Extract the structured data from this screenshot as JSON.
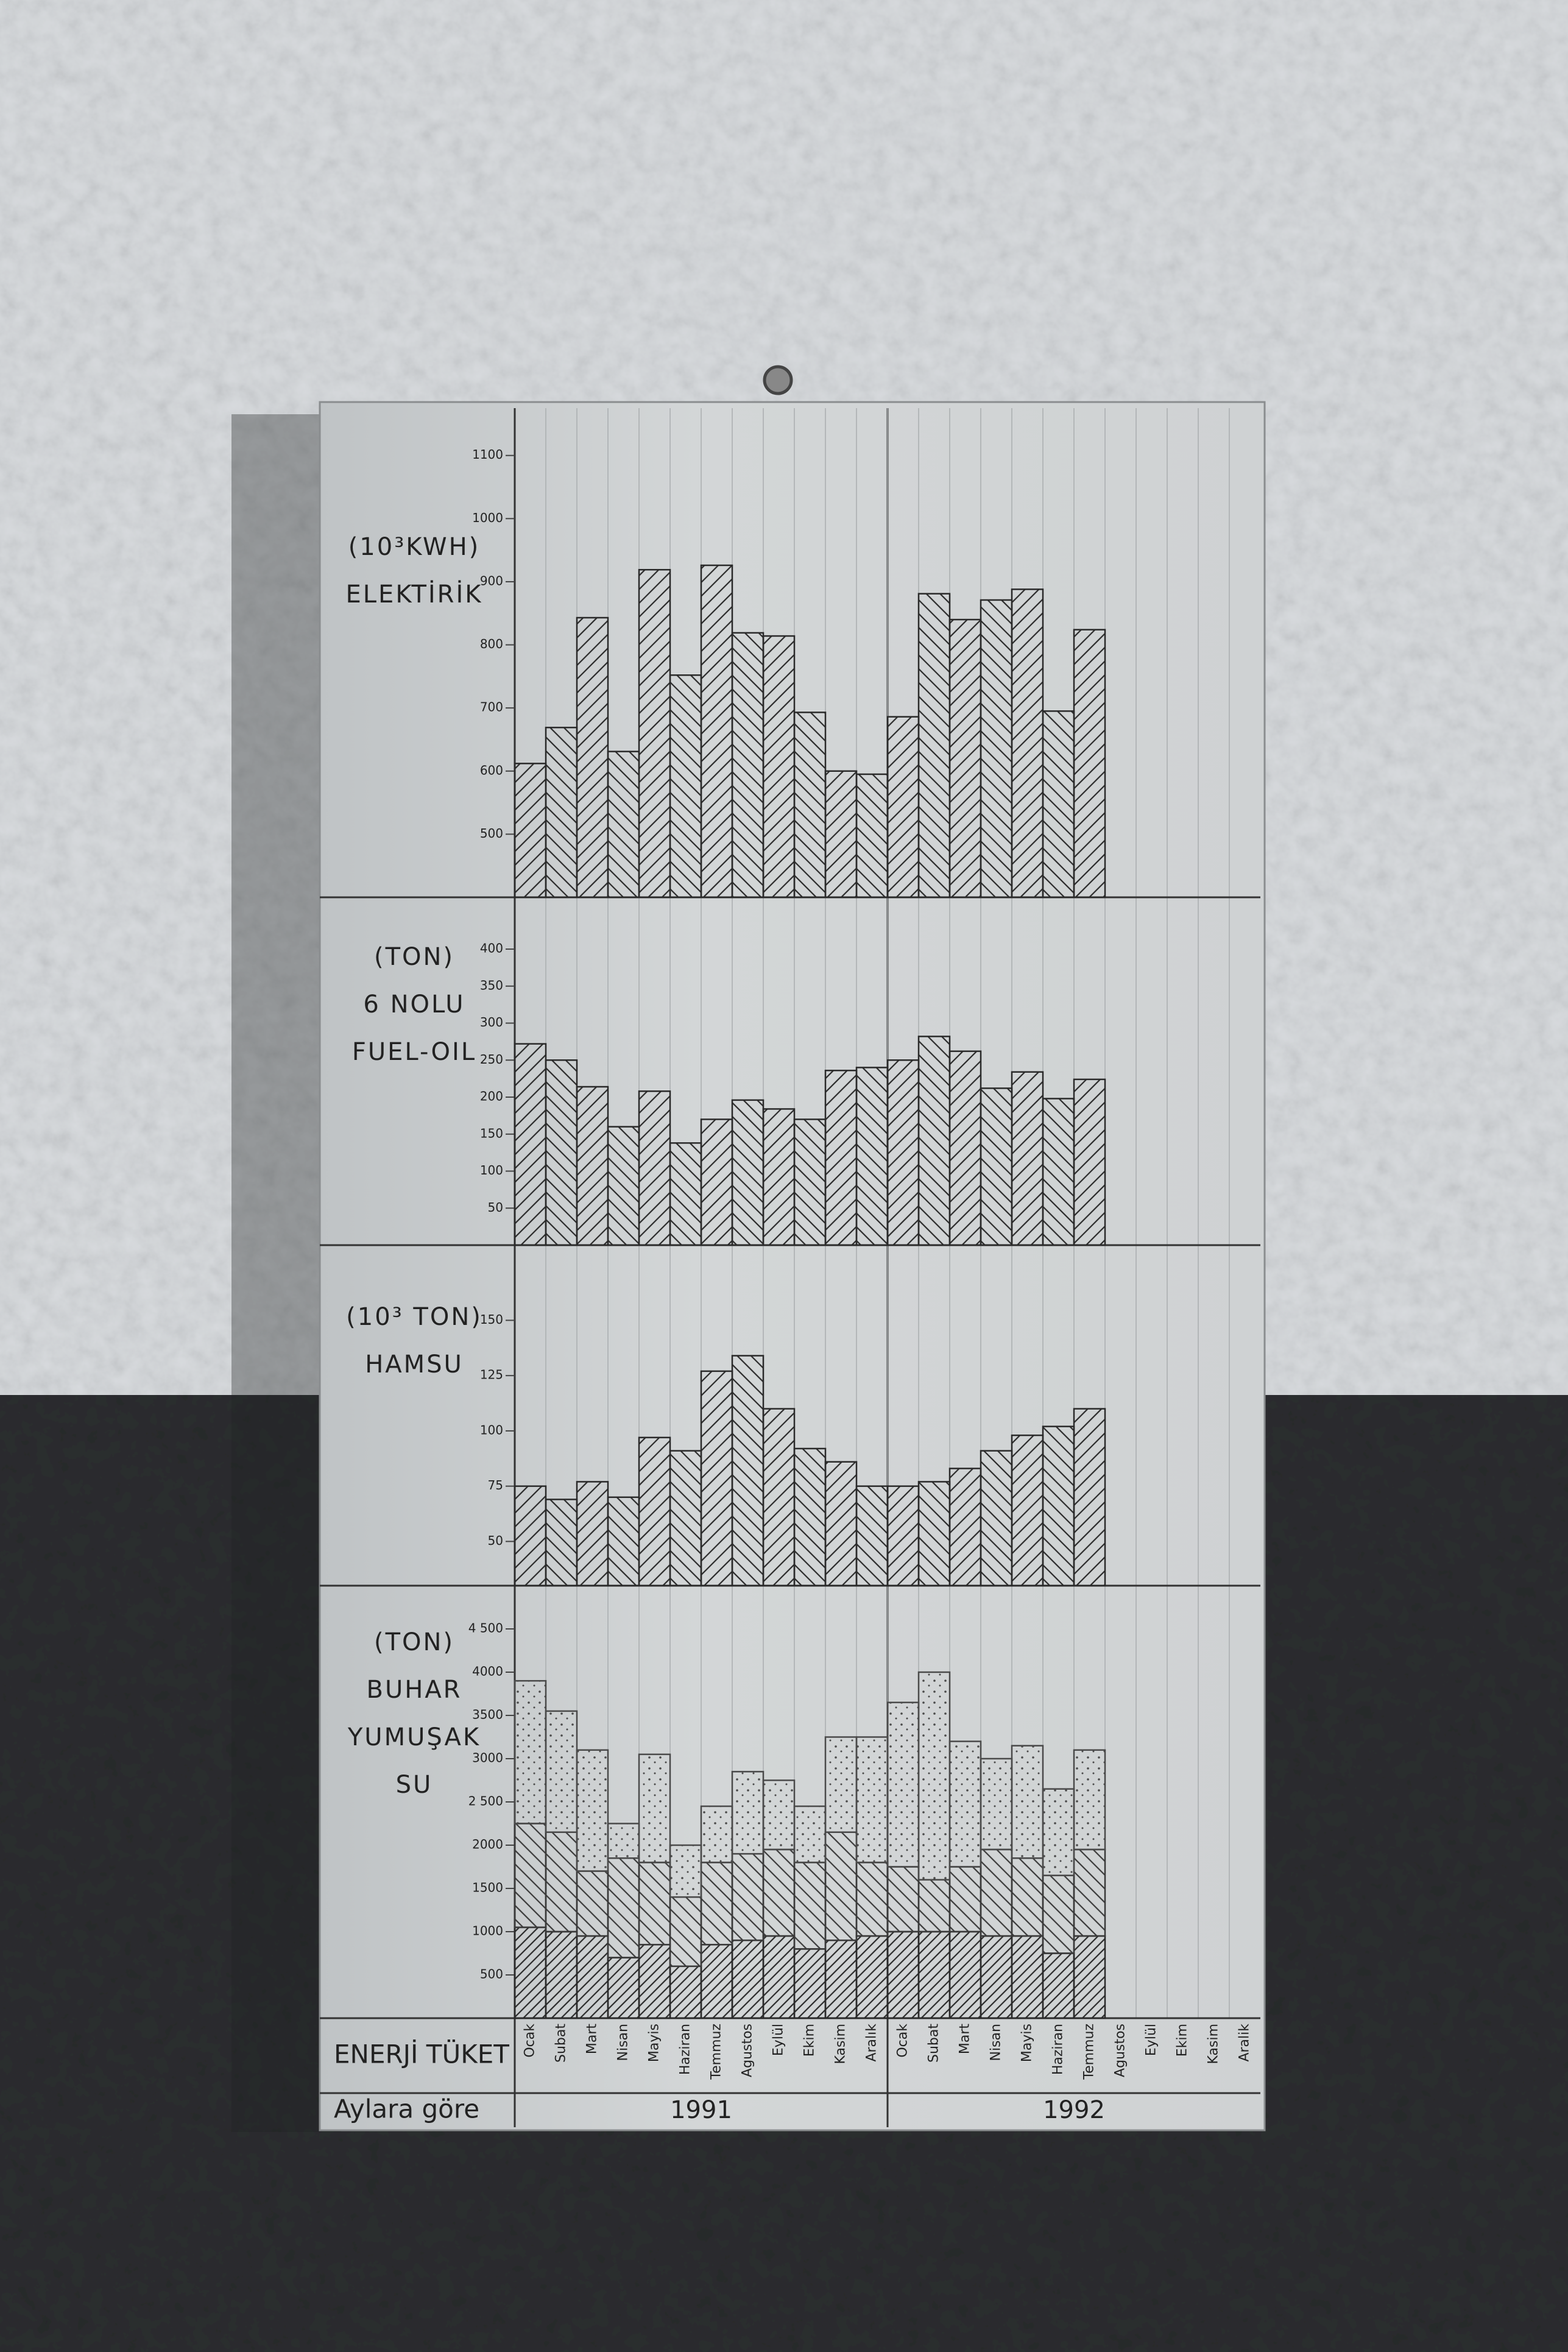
{
  "chart_data": [
    {
      "type": "bar",
      "ylabel": [
        "(10³KWH)",
        "ELEKTİRİK"
      ],
      "color": "#2a2a2a",
      "ylim": [
        400,
        1175
      ],
      "yticks": [
        500,
        600,
        700,
        800,
        900,
        1000,
        1100
      ],
      "values": [
        612,
        669,
        843,
        631,
        919,
        752,
        926,
        819,
        814,
        693,
        600,
        595,
        686,
        881,
        840,
        871,
        888,
        695,
        824,
        null,
        null,
        null,
        null,
        null
      ]
    },
    {
      "type": "bar",
      "ylabel": [
        "(TON)",
        "6 NOLU",
        "FUEL-OIL"
      ],
      "color": "#2a2a2a",
      "ylim": [
        0,
        470
      ],
      "yticks": [
        50,
        100,
        150,
        200,
        250,
        300,
        350,
        400
      ],
      "values": [
        272,
        250,
        214,
        160,
        208,
        138,
        170,
        196,
        184,
        170,
        236,
        240,
        250,
        282,
        262,
        212,
        234,
        198,
        224,
        null,
        null,
        null,
        null,
        null
      ]
    },
    {
      "type": "bar",
      "ylabel": [
        "(10³ TON)",
        "HAMSU"
      ],
      "color": "#2a2a2a",
      "ylim": [
        30,
        184
      ],
      "yticks": [
        50,
        75,
        100,
        125,
        150
      ],
      "values": [
        75,
        69,
        77,
        70,
        97,
        91,
        127,
        134,
        110,
        92,
        86,
        75,
        75,
        77,
        83,
        91,
        98,
        102,
        110,
        null,
        null,
        null,
        null,
        null
      ]
    },
    {
      "type": "stacked_bar",
      "ylabel": [
        "(TON)",
        "BUHAR",
        "YUMUŞAK",
        "SU"
      ],
      "ylim": [
        0,
        5000
      ],
      "yticks": [
        500,
        1000,
        1500,
        2000,
        {
          "value": 2500,
          "label": "2 500"
        },
        3000,
        3500,
        4000,
        {
          "value": 4500,
          "label": "4 500"
        }
      ],
      "series": [
        {
          "color": "#2a2a2a",
          "values": [
            1050,
            1000,
            950,
            700,
            850,
            600,
            850,
            900,
            950,
            800,
            900,
            950,
            1000,
            1000,
            1000,
            950,
            950,
            750,
            950,
            null,
            null,
            null,
            null,
            null
          ]
        },
        {
          "color": "#3a3a3a",
          "values": [
            1200,
            1150,
            750,
            1150,
            950,
            800,
            950,
            1000,
            1000,
            1000,
            1250,
            850,
            750,
            600,
            750,
            1000,
            900,
            900,
            1000,
            null,
            null,
            null,
            null,
            null
          ]
        },
        {
          "color": "#4a4a4a",
          "values": [
            1650,
            1400,
            1400,
            400,
            1250,
            600,
            650,
            950,
            800,
            650,
            1100,
            1450,
            1900,
            2400,
            1450,
            1050,
            1300,
            1000,
            1150,
            null,
            null,
            null,
            null,
            null
          ]
        }
      ]
    }
  ],
  "x_axis": {
    "title": [
      "ENERJİ TÜKET",
      "Aylara göre"
    ],
    "categories": [
      "Ocak",
      "Subat",
      "Mart",
      "Nisan",
      "Mayis",
      "Haziran",
      "Temmuz",
      "Agustos",
      "Eylül",
      "Ekim",
      "Kasim",
      "Aralık",
      "Ocak",
      "Subat",
      "Mart",
      "Nisan",
      "Mayis",
      "Haziran",
      "Temmuz",
      "Agustos",
      "Eylül",
      "Ekim",
      "Kasim",
      "Aralik"
    ],
    "years": [
      "1991",
      "1992"
    ]
  }
}
